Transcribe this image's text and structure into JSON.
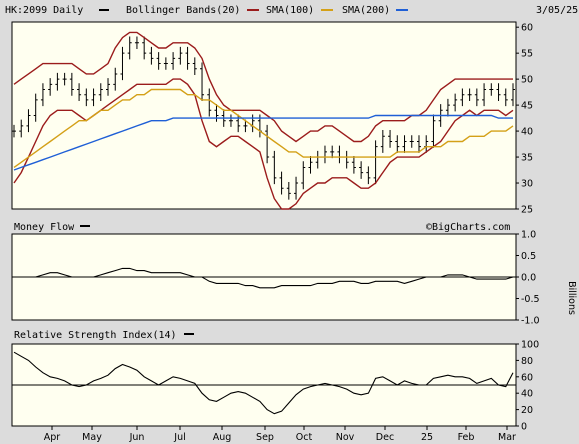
{
  "header": {
    "symbol": "HK:2099 Daily",
    "date": "3/05/25",
    "legend": [
      {
        "label": "Bollinger Bands(20)",
        "color": "#9b1c1c"
      },
      {
        "label": "SMA(100)",
        "color": "#d4a017"
      },
      {
        "label": "SMA(200)",
        "color": "#1f5fd6"
      }
    ]
  },
  "watermark": "©BigCharts.com",
  "months": [
    "Apr",
    "May",
    "Jun",
    "Jul",
    "Aug",
    "Sep",
    "Oct",
    "Nov",
    "Dec",
    "25",
    "Feb",
    "Mar"
  ],
  "chart_data": [
    {
      "type": "line",
      "name": "price",
      "yticks": [
        25,
        30,
        35,
        40,
        45,
        50,
        55,
        60
      ],
      "ylim": [
        25,
        61
      ],
      "series": [
        {
          "name": "Price",
          "color": "#000000",
          "values": [
            40,
            41,
            43,
            46,
            48,
            49,
            50,
            50,
            48,
            47,
            46,
            47,
            48,
            49,
            51,
            55,
            57,
            57,
            55,
            54,
            53,
            53,
            54,
            55,
            53,
            52,
            47,
            44,
            43,
            42,
            42,
            41,
            41,
            42,
            40,
            35,
            31,
            29,
            28,
            30,
            33,
            34,
            35,
            36,
            36,
            35,
            34,
            33,
            32,
            31,
            37,
            39,
            38,
            37,
            38,
            38,
            37,
            38,
            42,
            44,
            45,
            46,
            47,
            47,
            46,
            48,
            48,
            47,
            46,
            48
          ]
        },
        {
          "name": "Bollinger Upper",
          "color": "#9b1c1c",
          "values": [
            49,
            50,
            51,
            52,
            53,
            53,
            53,
            53,
            53,
            52,
            51,
            51,
            52,
            53,
            56,
            58,
            59,
            59,
            58,
            57,
            56,
            56,
            57,
            57,
            57,
            56,
            54,
            50,
            47,
            45,
            44,
            44,
            44,
            44,
            44,
            43,
            42,
            40,
            39,
            38,
            39,
            40,
            40,
            41,
            41,
            40,
            39,
            38,
            38,
            39,
            41,
            42,
            42,
            42,
            42,
            43,
            43,
            44,
            46,
            48,
            49,
            50,
            50,
            50,
            50,
            50,
            50,
            50,
            50,
            50
          ]
        },
        {
          "name": "Bollinger Lower",
          "color": "#9b1c1c",
          "values": [
            30,
            32,
            35,
            38,
            41,
            43,
            44,
            44,
            44,
            43,
            42,
            43,
            44,
            45,
            46,
            47,
            48,
            49,
            49,
            49,
            49,
            49,
            50,
            50,
            49,
            47,
            42,
            38,
            37,
            38,
            39,
            39,
            38,
            37,
            36,
            31,
            27,
            25,
            25,
            26,
            28,
            29,
            30,
            30,
            31,
            31,
            31,
            30,
            29,
            29,
            30,
            32,
            34,
            35,
            35,
            35,
            35,
            36,
            37,
            38,
            40,
            42,
            43,
            44,
            43,
            44,
            44,
            44,
            43,
            44
          ]
        },
        {
          "name": "SMA(100)",
          "color": "#d4a017",
          "values": [
            33,
            34,
            35,
            36,
            37,
            38,
            39,
            40,
            41,
            42,
            42,
            43,
            44,
            44,
            45,
            46,
            46,
            47,
            47,
            48,
            48,
            48,
            48,
            48,
            47,
            47,
            46,
            46,
            45,
            44,
            44,
            43,
            42,
            41,
            40,
            39,
            38,
            37,
            36,
            36,
            35,
            35,
            35,
            35,
            35,
            35,
            35,
            35,
            35,
            35,
            35,
            35,
            35,
            36,
            36,
            36,
            36,
            37,
            37,
            37,
            38,
            38,
            38,
            39,
            39,
            39,
            40,
            40,
            40,
            41
          ]
        },
        {
          "name": "SMA(200)",
          "color": "#1f5fd6",
          "values": [
            32.5,
            33,
            33.5,
            34,
            34.5,
            35,
            35.5,
            36,
            36.5,
            37,
            37.5,
            38,
            38.5,
            39,
            39.5,
            40,
            40.5,
            41,
            41.5,
            42,
            42,
            42,
            42.5,
            42.5,
            42.5,
            42.5,
            42.5,
            42.5,
            42.5,
            42.5,
            42.5,
            42.5,
            42.5,
            42.5,
            42.5,
            42.5,
            42.5,
            42.5,
            42.5,
            42.5,
            42.5,
            42.5,
            42.5,
            42.5,
            42.5,
            42.5,
            42.5,
            42.5,
            42.5,
            42.5,
            43,
            43,
            43,
            43,
            43,
            43,
            43,
            43,
            43,
            43,
            43,
            43,
            43,
            43,
            43,
            43,
            43,
            42.5,
            42.5,
            42.5
          ]
        }
      ]
    },
    {
      "type": "line",
      "name": "money-flow",
      "title": "Money Flow",
      "ylabel": "Billions",
      "yticks": [
        "1.0",
        "0.5",
        "0.0",
        "-0.5",
        "-1.0"
      ],
      "ylim": [
        -1,
        1
      ],
      "series": [
        {
          "name": "Money Flow",
          "color": "#000000",
          "values": [
            0,
            0,
            0,
            0,
            0.05,
            0.1,
            0.1,
            0.05,
            0,
            0,
            0,
            0,
            0.05,
            0.1,
            0.15,
            0.2,
            0.2,
            0.15,
            0.15,
            0.1,
            0.1,
            0.1,
            0.1,
            0.1,
            0.05,
            0,
            0,
            -0.1,
            -0.15,
            -0.15,
            -0.15,
            -0.15,
            -0.2,
            -0.2,
            -0.25,
            -0.25,
            -0.25,
            -0.2,
            -0.2,
            -0.2,
            -0.2,
            -0.2,
            -0.15,
            -0.15,
            -0.15,
            -0.1,
            -0.1,
            -0.1,
            -0.15,
            -0.15,
            -0.1,
            -0.1,
            -0.1,
            -0.1,
            -0.15,
            -0.1,
            -0.05,
            0,
            0,
            0,
            0.05,
            0.05,
            0.05,
            0,
            -0.05,
            -0.05,
            -0.05,
            -0.05,
            -0.05,
            0
          ]
        }
      ]
    },
    {
      "type": "line",
      "name": "rsi",
      "title": "Relative Strength Index(14)",
      "yticks": [
        100,
        80,
        60,
        40,
        20,
        0
      ],
      "ylim": [
        0,
        100
      ],
      "series": [
        {
          "name": "RSI",
          "color": "#000000",
          "values": [
            90,
            85,
            80,
            72,
            65,
            60,
            58,
            55,
            50,
            48,
            50,
            55,
            58,
            62,
            70,
            75,
            72,
            68,
            60,
            55,
            50,
            55,
            60,
            58,
            55,
            52,
            40,
            32,
            30,
            35,
            40,
            42,
            40,
            35,
            30,
            20,
            15,
            18,
            28,
            38,
            45,
            48,
            50,
            52,
            50,
            48,
            45,
            40,
            38,
            40,
            58,
            60,
            55,
            50,
            55,
            52,
            50,
            50,
            58,
            60,
            62,
            60,
            60,
            58,
            52,
            55,
            58,
            50,
            48,
            65
          ]
        }
      ]
    }
  ]
}
